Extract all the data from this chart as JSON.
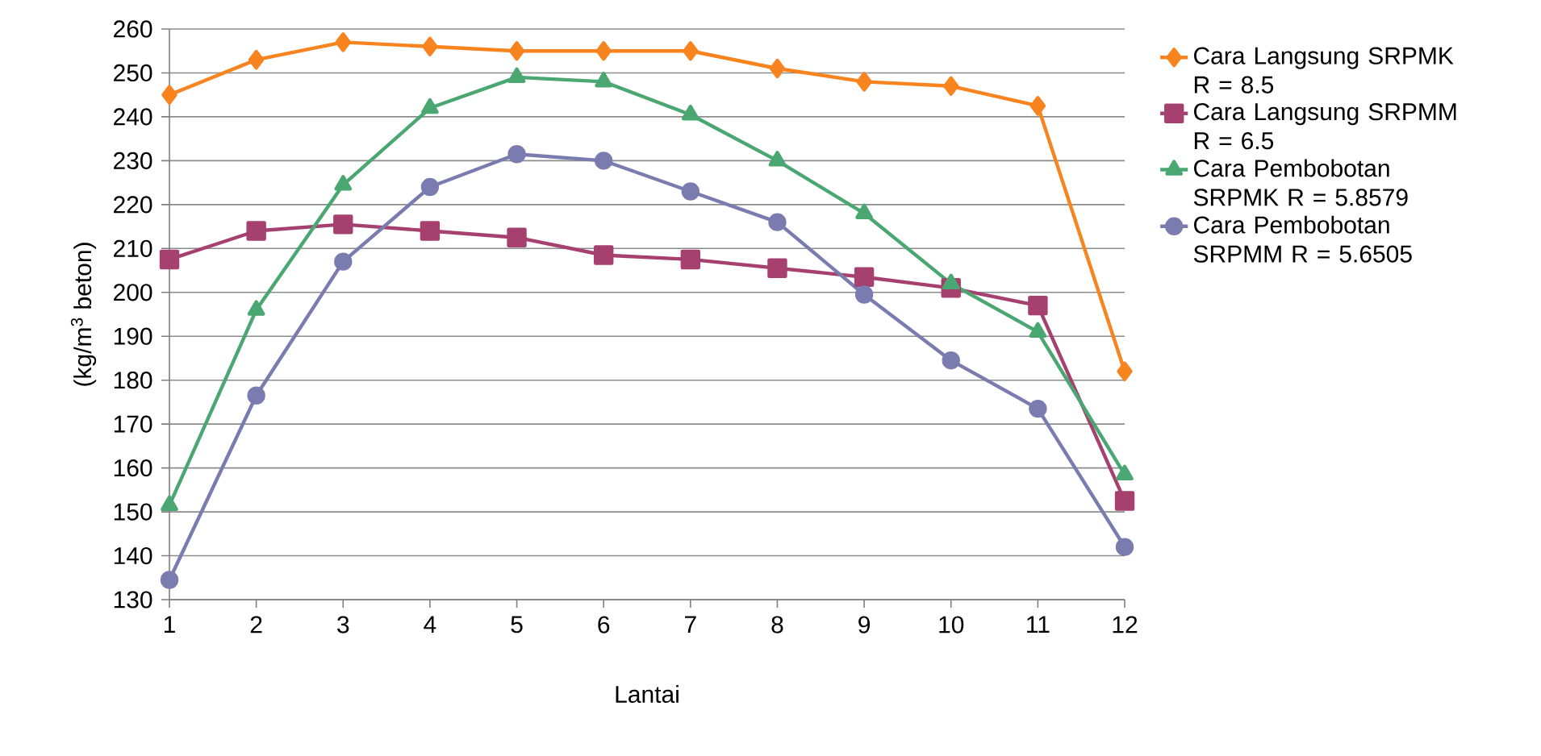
{
  "chart_data": {
    "type": "line",
    "xlabel": "Lantai",
    "ylabel": "(kg/m$^{3}$ beton)",
    "x": [
      1,
      2,
      3,
      4,
      5,
      6,
      7,
      8,
      9,
      10,
      11,
      12
    ],
    "xlim": [
      1,
      12
    ],
    "xticks": [
      1,
      2,
      3,
      4,
      5,
      6,
      7,
      8,
      9,
      10,
      11,
      12
    ],
    "ylim": [
      130,
      260
    ],
    "yticks": [
      130,
      140,
      150,
      160,
      170,
      180,
      190,
      200,
      210,
      220,
      230,
      240,
      250,
      260
    ],
    "grid": "y",
    "legend": "right",
    "line_style": "solid",
    "series": [
      {
        "name": "Cara Langsung SRPMK R = 8.5",
        "color": "#f7841f",
        "marker": "diamond",
        "values": [
          245,
          253,
          257,
          256,
          255,
          255,
          255,
          251,
          248,
          247,
          242.5,
          182
        ]
      },
      {
        "name": "Cara Langsung SRPMM R = 6.5",
        "color": "#a6416f",
        "marker": "square",
        "values": [
          207.5,
          214,
          215.5,
          214,
          212.5,
          208.5,
          207.5,
          205.5,
          203.5,
          201,
          197,
          152.5
        ]
      },
      {
        "name": "Cara Pembobotan SRPMK R = 5.8579",
        "color": "#4aa772",
        "marker": "triangle",
        "values": [
          151.5,
          196,
          224.5,
          242,
          249,
          248,
          240.5,
          230,
          218,
          202,
          191,
          158.5
        ]
      },
      {
        "name": "Cara Pembobotan SRPMM R = 5.6505",
        "color": "#7a7cb0",
        "marker": "circle",
        "values": [
          134.5,
          176.5,
          207,
          224,
          231.5,
          230,
          223,
          216,
          199.5,
          184.5,
          173.5,
          142
        ]
      }
    ]
  }
}
